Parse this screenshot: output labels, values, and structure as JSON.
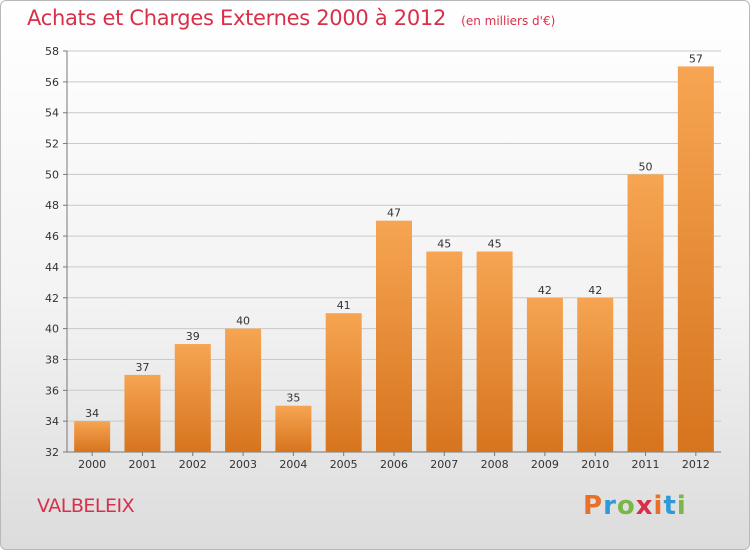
{
  "header": {
    "title": "Achats et Charges Externes 2000 à 2012",
    "unit": "(en milliers d'€)"
  },
  "footer": {
    "place": "VALBELEIX",
    "logo_text": "Proxiti",
    "logo_colors": [
      "#e8702a",
      "#2f9bd6",
      "#7ab648",
      "#d9304a",
      "#e8702a",
      "#2f9bd6",
      "#7ab648"
    ]
  },
  "chart_data": {
    "type": "bar",
    "categories": [
      "2000",
      "2001",
      "2002",
      "2003",
      "2004",
      "2005",
      "2006",
      "2007",
      "2008",
      "2009",
      "2010",
      "2011",
      "2012"
    ],
    "values": [
      34,
      37,
      39,
      40,
      35,
      41,
      47,
      45,
      45,
      42,
      42,
      50,
      57
    ],
    "data_labels": [
      "34",
      "37",
      "39",
      "40",
      "35",
      "41",
      "47",
      "45",
      "45",
      "42",
      "42",
      "50",
      "57"
    ],
    "ylim": [
      32,
      58
    ],
    "yticks": [
      32,
      34,
      36,
      38,
      40,
      42,
      44,
      46,
      48,
      50,
      52,
      54,
      56,
      58
    ],
    "grid": true,
    "colors": {
      "bar_light": "#f6a552",
      "bar_dark": "#d7741e",
      "grid": "#c9c9c9",
      "text": "#333333"
    }
  }
}
